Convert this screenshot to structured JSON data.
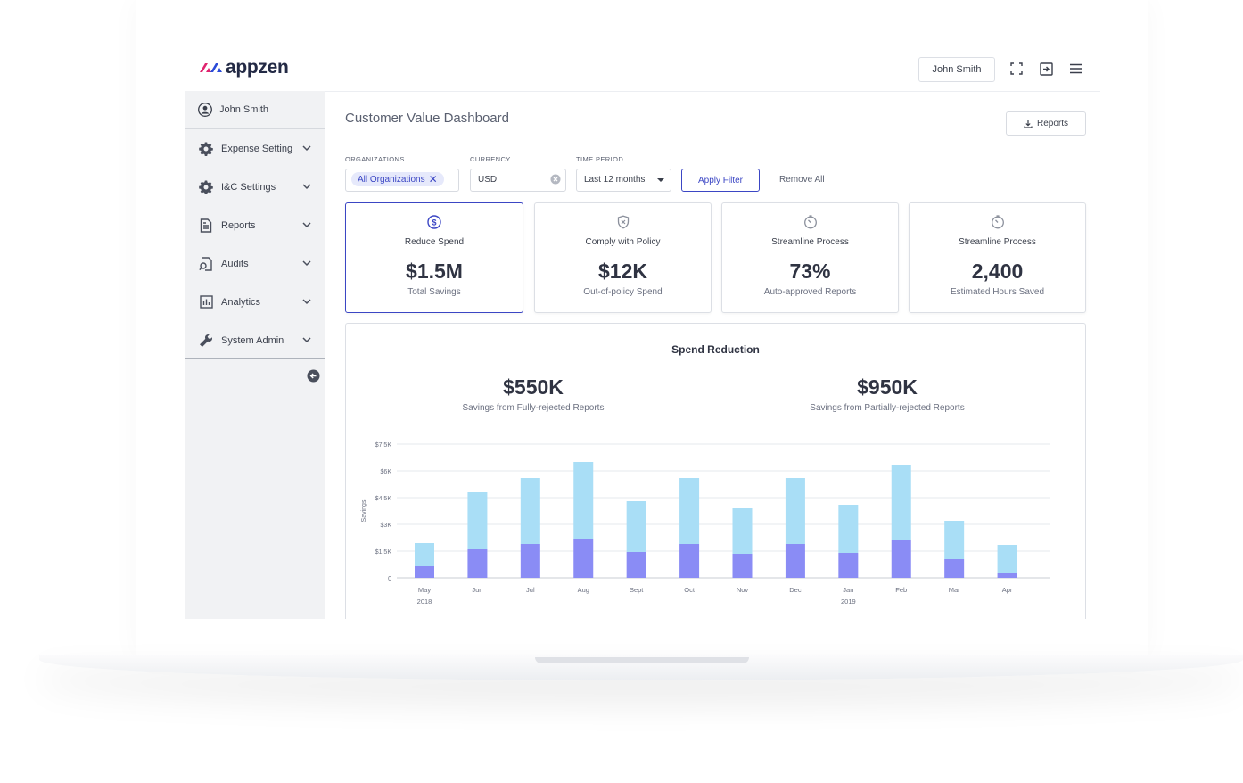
{
  "app": {
    "brand": "appzen",
    "brand_colors": {
      "accent": "#3b46c4",
      "logo_pink": "#e0246f",
      "logo_blue": "#2b4bd8"
    }
  },
  "topbar": {
    "user_button": "John Smith",
    "icons": [
      "fullscreen-icon",
      "logout-icon",
      "hamburger-menu-icon"
    ]
  },
  "sidebar": {
    "user": "John Smith",
    "items": [
      {
        "label": "Expense Setting",
        "icon": "gear-icon"
      },
      {
        "label": "I&C Settings",
        "icon": "gear-icon"
      },
      {
        "label": "Reports",
        "icon": "document-icon"
      },
      {
        "label": "Audits",
        "icon": "search-document-icon"
      },
      {
        "label": "Analytics",
        "icon": "bar-chart-icon"
      },
      {
        "label": "System Admin",
        "icon": "wrench-icon"
      }
    ]
  },
  "main": {
    "title": "Customer Value Dashboard",
    "reports_button": "Reports",
    "filters": {
      "organizations_label": "ORGANIZATIONS",
      "organizations_chip": "All Organizations",
      "currency_label": "CURRENCY",
      "currency_value": "USD",
      "time_period_label": "TIME PERIOD",
      "time_period_value": "Last 12 months",
      "apply_button": "Apply Filter",
      "remove_all": "Remove All"
    },
    "cards": [
      {
        "title": "Reduce Spend",
        "value": "$1.5M",
        "sub": "Total Savings",
        "icon": "dollar-circle-icon"
      },
      {
        "title": "Comply with Policy",
        "value": "$12K",
        "sub": "Out-of-policy Spend",
        "icon": "shield-icon"
      },
      {
        "title": "Streamline Process",
        "value": "73%",
        "sub": "Auto-approved Reports",
        "icon": "timer-icon"
      },
      {
        "title": "Streamline Process",
        "value": "2,400",
        "sub": "Estimated Hours Saved",
        "icon": "timer-icon"
      }
    ],
    "spend_reduction": {
      "title": "Spend Reduction",
      "stat1_value": "$550K",
      "stat1_caption": "Savings from Fully-rejected Reports",
      "stat2_value": "$950K",
      "stat2_caption": "Savings from Partially-rejected Reports"
    }
  },
  "chart_data": {
    "type": "bar",
    "stacked": true,
    "title": "",
    "ylabel": "Savings",
    "xlabel": "",
    "ylim": [
      0,
      7500
    ],
    "yticks": [
      0,
      1500,
      3000,
      4500,
      6000,
      7500
    ],
    "ytick_labels": [
      "0",
      "$1.5K",
      "$3K",
      "$4.5K",
      "$6K",
      "$7.5K"
    ],
    "categories": [
      "May",
      "Jun",
      "Jul",
      "Aug",
      "Sept",
      "Oct",
      "Nov",
      "Dec",
      "Jan",
      "Feb",
      "Mar",
      "Apr"
    ],
    "category_sublabels": [
      "2018",
      "",
      "",
      "",
      "",
      "",
      "",
      "",
      "2019",
      "",
      "",
      ""
    ],
    "series": [
      {
        "color": "#8a8cf5",
        "values": [
          650,
          1600,
          1900,
          2200,
          1450,
          1900,
          1350,
          1900,
          1400,
          2150,
          1050,
          250
        ]
      },
      {
        "color": "#a9def6",
        "values": [
          1300,
          3200,
          3700,
          4300,
          2850,
          3700,
          2550,
          3700,
          2700,
          4200,
          2150,
          1600
        ]
      }
    ],
    "grid": true
  }
}
